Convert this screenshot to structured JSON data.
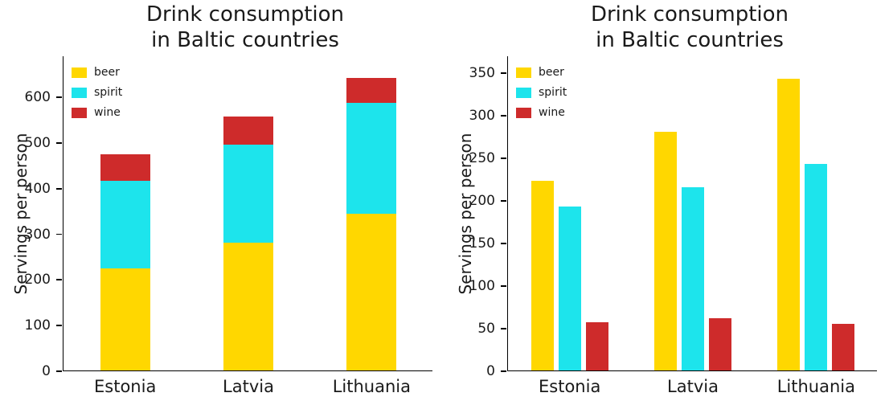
{
  "page": {
    "background": "#FFFFFF"
  },
  "chart_data": [
    {
      "type": "bar",
      "variant": "stacked",
      "title": "Drink consumption\nin Baltic countries",
      "ylabel": "Servings per person",
      "xlabel": "",
      "categories": [
        "Estonia",
        "Latvia",
        "Lithuania"
      ],
      "series": [
        {
          "name": "beer",
          "color": "#FFD700",
          "values": [
            223,
            280,
            343
          ]
        },
        {
          "name": "spirit",
          "color": "#1DE4EC",
          "values": [
            193,
            215,
            243
          ]
        },
        {
          "name": "wine",
          "color": "#CE2B2B",
          "values": [
            57,
            61,
            55
          ]
        }
      ],
      "yticks": [
        0,
        100,
        200,
        300,
        400,
        500,
        600
      ],
      "ylim": [
        0,
        690
      ],
      "legend": {
        "position": "upper-left",
        "labels": [
          "beer",
          "spirit",
          "wine"
        ]
      },
      "grid": false
    },
    {
      "type": "bar",
      "variant": "grouped",
      "title": "Drink consumption\nin Baltic countries",
      "ylabel": "Servings per person",
      "xlabel": "",
      "categories": [
        "Estonia",
        "Latvia",
        "Lithuania"
      ],
      "series": [
        {
          "name": "beer",
          "color": "#FFD700",
          "values": [
            223,
            280,
            343
          ]
        },
        {
          "name": "spirit",
          "color": "#1DE4EC",
          "values": [
            193,
            215,
            243
          ]
        },
        {
          "name": "wine",
          "color": "#CE2B2B",
          "values": [
            57,
            61,
            55
          ]
        }
      ],
      "yticks": [
        0,
        50,
        100,
        150,
        200,
        250,
        300,
        350
      ],
      "ylim": [
        0,
        370
      ],
      "legend": {
        "position": "upper-left",
        "labels": [
          "beer",
          "spirit",
          "wine"
        ]
      },
      "grid": false
    }
  ]
}
